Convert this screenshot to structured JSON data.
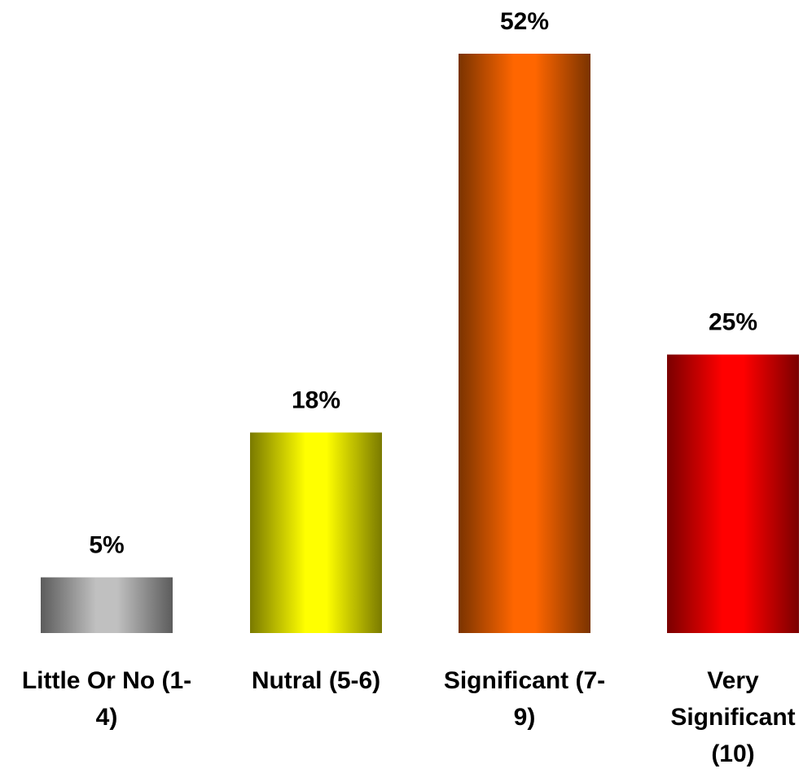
{
  "chart_data": {
    "type": "bar",
    "categories": [
      [
        "Little Or No (1-",
        "4)"
      ],
      [
        "Nutral (5-6)"
      ],
      [
        "Significant (7-",
        "9)"
      ],
      [
        "Very",
        "Significant",
        "(10)"
      ]
    ],
    "values": [
      5,
      18,
      52,
      25
    ],
    "value_labels": [
      "5%",
      "18%",
      "52%",
      "25%"
    ],
    "unit": "%",
    "ylim": [
      0,
      52
    ],
    "grid": false,
    "legend": "none",
    "bar_colors": [
      {
        "edge": "#5c5c5c",
        "mid": "#c0c0c0"
      },
      {
        "edge": "#7a7a00",
        "mid": "#ffff00"
      },
      {
        "edge": "#7a3300",
        "mid": "#ff6600"
      },
      {
        "edge": "#7a0000",
        "mid": "#ff0000"
      }
    ]
  }
}
